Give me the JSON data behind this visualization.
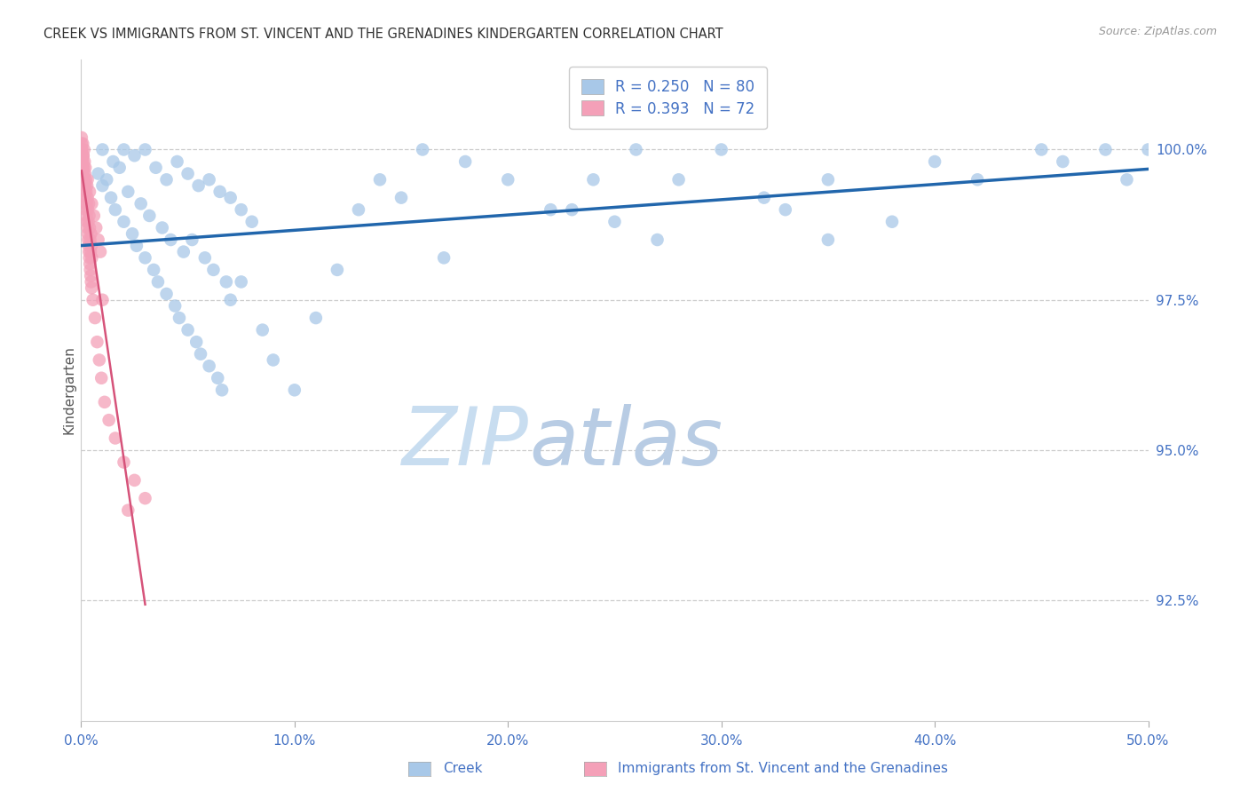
{
  "title": "CREEK VS IMMIGRANTS FROM ST. VINCENT AND THE GRENADINES KINDERGARTEN CORRELATION CHART",
  "source": "Source: ZipAtlas.com",
  "ylabel": "Kindergarten",
  "right_ytick_labels": [
    "100.0%",
    "97.5%",
    "95.0%",
    "92.5%"
  ],
  "right_ytick_vals": [
    100.0,
    97.5,
    95.0,
    92.5
  ],
  "xtick_labels": [
    "0.0%",
    "10.0%",
    "20.0%",
    "30.0%",
    "40.0%",
    "50.0%"
  ],
  "xtick_vals": [
    0,
    10,
    20,
    30,
    40,
    50
  ],
  "legend_creek_R": "R = 0.250",
  "legend_creek_N": "N = 80",
  "legend_imm_R": "R = 0.393",
  "legend_imm_N": "N = 72",
  "legend_creek_label": "Creek",
  "legend_imm_label": "Immigrants from St. Vincent and the Grenadines",
  "blue_scatter_color": "#a8c8e8",
  "pink_scatter_color": "#f4a0b8",
  "blue_line_color": "#2166ac",
  "pink_line_color": "#d6537a",
  "axis_color": "#4472c4",
  "title_color": "#333333",
  "source_color": "#999999",
  "grid_color": "#cccccc",
  "watermark_color": "#ddeeff",
  "bg_color": "#ffffff",
  "xmin": 0.0,
  "xmax": 50.0,
  "ymin": 90.5,
  "ymax": 101.5,
  "blue_x": [
    1.0,
    1.5,
    2.0,
    2.5,
    3.0,
    3.5,
    4.0,
    4.5,
    5.0,
    5.5,
    6.0,
    6.5,
    7.0,
    7.5,
    8.0,
    1.2,
    1.8,
    2.2,
    2.8,
    3.2,
    3.8,
    4.2,
    4.8,
    5.2,
    5.8,
    6.2,
    6.8,
    0.8,
    1.0,
    1.4,
    1.6,
    2.0,
    2.4,
    2.6,
    3.0,
    3.4,
    3.6,
    4.0,
    4.4,
    4.6,
    5.0,
    5.4,
    5.6,
    6.0,
    6.4,
    6.6,
    7.0,
    7.5,
    8.5,
    9.0,
    10.0,
    11.0,
    12.0,
    14.0,
    16.0,
    18.0,
    20.0,
    22.0,
    24.0,
    26.0,
    28.0,
    30.0,
    35.0,
    40.0,
    45.0,
    48.0,
    49.0,
    50.0,
    15.0,
    25.0,
    35.0,
    17.0,
    23.0,
    27.0,
    33.0,
    38.0,
    42.0,
    46.0,
    13.0,
    32.0
  ],
  "blue_y": [
    100.0,
    99.8,
    100.0,
    99.9,
    100.0,
    99.7,
    99.5,
    99.8,
    99.6,
    99.4,
    99.5,
    99.3,
    99.2,
    99.0,
    98.8,
    99.5,
    99.7,
    99.3,
    99.1,
    98.9,
    98.7,
    98.5,
    98.3,
    98.5,
    98.2,
    98.0,
    97.8,
    99.6,
    99.4,
    99.2,
    99.0,
    98.8,
    98.6,
    98.4,
    98.2,
    98.0,
    97.8,
    97.6,
    97.4,
    97.2,
    97.0,
    96.8,
    96.6,
    96.4,
    96.2,
    96.0,
    97.5,
    97.8,
    97.0,
    96.5,
    96.0,
    97.2,
    98.0,
    99.5,
    100.0,
    99.8,
    99.5,
    99.0,
    99.5,
    100.0,
    99.5,
    100.0,
    99.5,
    99.8,
    100.0,
    100.0,
    99.5,
    100.0,
    99.2,
    98.8,
    98.5,
    98.2,
    99.0,
    98.5,
    99.0,
    98.8,
    99.5,
    99.8,
    99.0,
    99.2
  ],
  "pink_x": [
    0.02,
    0.04,
    0.06,
    0.08,
    0.1,
    0.12,
    0.14,
    0.16,
    0.18,
    0.2,
    0.22,
    0.24,
    0.26,
    0.28,
    0.3,
    0.32,
    0.34,
    0.36,
    0.38,
    0.4,
    0.42,
    0.44,
    0.46,
    0.48,
    0.5,
    0.03,
    0.07,
    0.11,
    0.15,
    0.19,
    0.23,
    0.27,
    0.31,
    0.35,
    0.39,
    0.43,
    0.47,
    0.05,
    0.09,
    0.13,
    0.17,
    0.21,
    0.25,
    0.29,
    0.33,
    0.37,
    0.41,
    0.45,
    0.49,
    0.55,
    0.65,
    0.75,
    0.85,
    0.95,
    1.1,
    1.3,
    1.6,
    2.0,
    2.5,
    3.0,
    0.02,
    0.1,
    0.2,
    0.3,
    0.4,
    0.5,
    0.6,
    0.7,
    0.8,
    0.9,
    1.0,
    2.2
  ],
  "pink_y": [
    100.2,
    100.0,
    99.8,
    100.1,
    99.9,
    99.7,
    100.0,
    99.8,
    99.6,
    99.4,
    99.5,
    99.3,
    99.1,
    99.4,
    99.2,
    99.0,
    98.8,
    99.1,
    98.9,
    98.7,
    98.5,
    98.3,
    98.6,
    98.4,
    98.2,
    100.0,
    99.8,
    99.6,
    99.4,
    99.2,
    99.0,
    98.8,
    98.6,
    98.4,
    98.2,
    98.0,
    97.8,
    99.9,
    99.7,
    99.5,
    99.3,
    99.1,
    98.9,
    98.7,
    98.5,
    98.3,
    98.1,
    97.9,
    97.7,
    97.5,
    97.2,
    96.8,
    96.5,
    96.2,
    95.8,
    95.5,
    95.2,
    94.8,
    94.5,
    94.2,
    100.1,
    99.9,
    99.7,
    99.5,
    99.3,
    99.1,
    98.9,
    98.7,
    98.5,
    98.3,
    97.5,
    94.0
  ]
}
